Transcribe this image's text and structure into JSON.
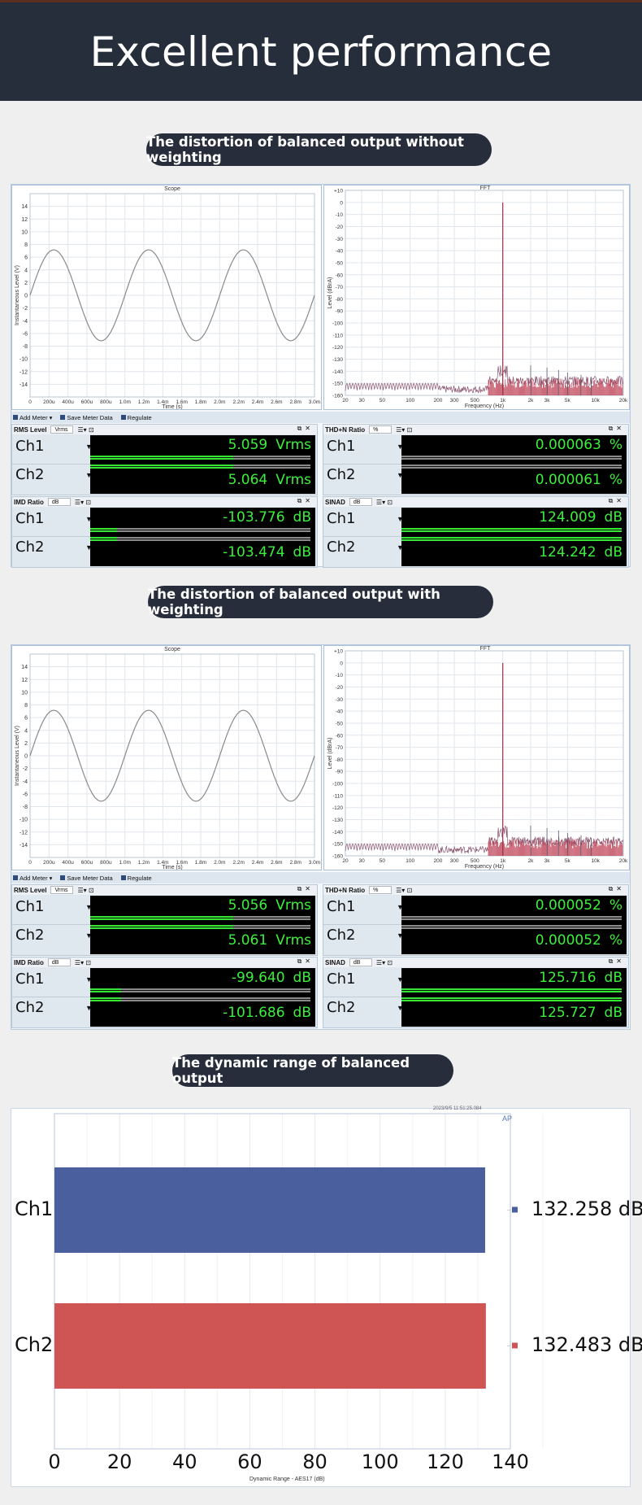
{
  "header": {
    "title": "Excellent performance"
  },
  "sections": [
    {
      "pill": "The distortion of balanced output without weighting",
      "scope": {
        "title": "Scope",
        "ylabel": "Instantaneous Level (V)",
        "xlabel": "Time (s)",
        "yticks": [
          "14",
          "12",
          "10",
          "8",
          "6",
          "4",
          "2",
          "0",
          "-2",
          "-4",
          "-6",
          "-8",
          "-10",
          "-12",
          "-14"
        ],
        "xticks": [
          "0",
          "200u",
          "400u",
          "600u",
          "800u",
          "1.0m",
          "1.2m",
          "1.4m",
          "1.6m",
          "1.8m",
          "2.0m",
          "2.2m",
          "2.4m",
          "2.6m",
          "2.8m",
          "3.0m"
        ]
      },
      "fft": {
        "title": "FFT",
        "ylabel": "Level (dBrA)",
        "xlabel": "Frequency (Hz)",
        "yticks": [
          "+10",
          "0",
          "-10",
          "-20",
          "-30",
          "-40",
          "-50",
          "-60",
          "-70",
          "-80",
          "-90",
          "-100",
          "-110",
          "-120",
          "-130",
          "-140",
          "-150",
          "-160"
        ],
        "xticks": [
          "20",
          "30",
          "50",
          "100",
          "200",
          "300",
          "500",
          "1k",
          "2k",
          "3k",
          "5k",
          "10k",
          "20k"
        ]
      },
      "toolbar": {
        "add_meter": "Add Meter",
        "save": "Save Meter Data",
        "regulate": "Regulate"
      },
      "meters": [
        {
          "title": "RMS Level",
          "unit": "Vrms",
          "ch1": "Ch1",
          "ch2": "Ch2",
          "v1": "5.059",
          "u1": "Vrms",
          "v2": "5.064",
          "u2": "Vrms",
          "fill1": 0.65,
          "fill2": 0.65
        },
        {
          "title": "THD+N Ratio",
          "unit": "%",
          "ch1": "Ch1",
          "ch2": "Ch2",
          "v1": "0.000063",
          "u1": "%",
          "v2": "0.000061",
          "u2": "%",
          "fill1": 0.0,
          "fill2": 0.0
        },
        {
          "title": "IMD Ratio",
          "unit": "dB",
          "ch1": "Ch1",
          "ch2": "Ch2",
          "v1": "-103.776",
          "u1": "dB",
          "v2": "-103.474",
          "u2": "dB",
          "fill1": 0.12,
          "fill2": 0.12
        },
        {
          "title": "SINAD",
          "unit": "dB",
          "ch1": "Ch1",
          "ch2": "Ch2",
          "v1": "124.009",
          "u1": "dB",
          "v2": "124.242",
          "u2": "dB",
          "fill1": 1.0,
          "fill2": 1.0
        }
      ]
    },
    {
      "pill": "The distortion of balanced output with weighting",
      "scope": {
        "title": "Scope",
        "ylabel": "Instantaneous Level (V)",
        "xlabel": "Time (s)",
        "yticks": [
          "14",
          "12",
          "10",
          "8",
          "6",
          "4",
          "2",
          "0",
          "-2",
          "-4",
          "-6",
          "-8",
          "-10",
          "-12",
          "-14"
        ],
        "xticks": [
          "0",
          "200u",
          "400u",
          "600u",
          "800u",
          "1.0m",
          "1.2m",
          "1.4m",
          "1.6m",
          "1.8m",
          "2.0m",
          "2.2m",
          "2.4m",
          "2.6m",
          "2.8m",
          "3.0m"
        ]
      },
      "fft": {
        "title": "FFT",
        "ylabel": "Level (dBrA)",
        "xlabel": "Frequency (Hz)",
        "yticks": [
          "+10",
          "0",
          "-10",
          "-20",
          "-30",
          "-40",
          "-50",
          "-60",
          "-70",
          "-80",
          "-90",
          "-100",
          "-110",
          "-120",
          "-130",
          "-140",
          "-150",
          "-160"
        ],
        "xticks": [
          "20",
          "30",
          "50",
          "100",
          "200",
          "300",
          "500",
          "1k",
          "2k",
          "3k",
          "5k",
          "10k",
          "20k"
        ]
      },
      "toolbar": {
        "add_meter": "Add Meter",
        "save": "Save Meter Data",
        "regulate": "Regulate"
      },
      "meters": [
        {
          "title": "RMS Level",
          "unit": "Vrms",
          "ch1": "Ch1",
          "ch2": "Ch2",
          "v1": "5.056",
          "u1": "Vrms",
          "v2": "5.061",
          "u2": "Vrms",
          "fill1": 0.65,
          "fill2": 0.65
        },
        {
          "title": "THD+N Ratio",
          "unit": "%",
          "ch1": "Ch1",
          "ch2": "Ch2",
          "v1": "0.000052",
          "u1": "%",
          "v2": "0.000052",
          "u2": "%",
          "fill1": 0.0,
          "fill2": 0.0
        },
        {
          "title": "IMD Ratio",
          "unit": "dB",
          "ch1": "Ch1",
          "ch2": "Ch2",
          "v1": "-99.640",
          "u1": "dB",
          "v2": "-101.686",
          "u2": "dB",
          "fill1": 0.14,
          "fill2": 0.14
        },
        {
          "title": "SINAD",
          "unit": "dB",
          "ch1": "Ch1",
          "ch2": "Ch2",
          "v1": "125.716",
          "u1": "dB",
          "v2": "125.727",
          "u2": "dB",
          "fill1": 1.0,
          "fill2": 1.0
        }
      ]
    }
  ],
  "dynamic_range": {
    "pill": "The dynamic range of balanced output",
    "stamp": "2023/9/5 11:51:25.084"
  },
  "chart_data": [
    {
      "type": "line",
      "title": "Scope",
      "xlabel": "Time (s)",
      "ylabel": "Instantaneous Level (V)",
      "xlim": [
        0,
        0.003
      ],
      "ylim": [
        -15,
        15
      ],
      "series": [
        {
          "amplitude": 7.15,
          "frequency_hz": 1000
        }
      ]
    },
    {
      "type": "line",
      "title": "FFT",
      "xlabel": "Frequency (Hz)",
      "ylabel": "Level (dBrA)",
      "xscale": "log",
      "xlim": [
        20,
        20000
      ],
      "ylim": [
        -160,
        10
      ],
      "peak": {
        "x": 1000,
        "y": 0
      }
    },
    {
      "type": "bar",
      "orientation": "horizontal",
      "categories": [
        "Ch1",
        "Ch2"
      ],
      "values": [
        132.258,
        132.483
      ],
      "value_labels": [
        "132.258 dB",
        "132.483 dB"
      ],
      "colors": [
        "#4a5f9e",
        "#cf5555"
      ],
      "xlabel": "Dynamic Range - AES17 (dB)",
      "xlim": [
        0,
        140
      ],
      "xticks": [
        "0",
        "20",
        "40",
        "60",
        "80",
        "100",
        "120",
        "140"
      ]
    }
  ]
}
